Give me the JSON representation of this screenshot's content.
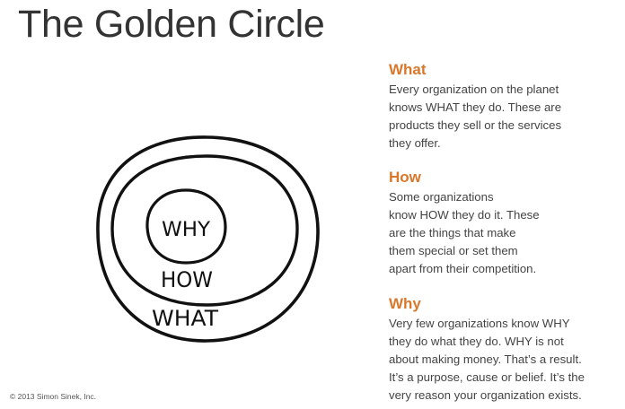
{
  "title": "The Golden Circle",
  "copyright": "© 2013 Simon Sinek, Inc.",
  "diagram": {
    "labels": [
      "WHY",
      "HOW",
      "WHAT"
    ]
  },
  "sections": [
    {
      "heading": "What",
      "lines": [
        "Every organization on the planet",
        "knows WHAT they do. These are",
        "products they sell or the services",
        "they offer."
      ]
    },
    {
      "heading": "How",
      "lines": [
        "Some organizations",
        "know HOW they do it. These",
        "are the things that make",
        "them special or set them",
        "apart from their competition."
      ]
    },
    {
      "heading": "Why",
      "lines": [
        "Very few organizations know WHY",
        "they do what they do. WHY is not",
        "about making money. That’s a result.",
        "It’s a purpose, cause or belief. It’s the",
        "very reason your organization exists."
      ]
    }
  ],
  "colors": {
    "heading": "#d9772b",
    "text": "#444444",
    "stroke": "#111111"
  }
}
